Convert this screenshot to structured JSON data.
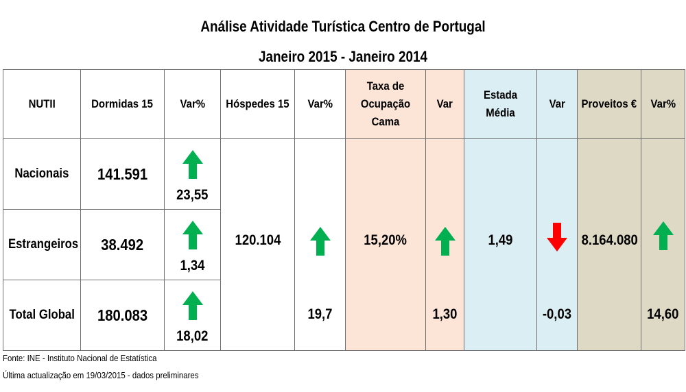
{
  "title": "Análise Atividade Turística Centro de Portugal",
  "subtitle": "Janeiro 2015 - Janeiro 2014",
  "header": {
    "nutii": "NUTII",
    "dormidas": "Dormidas 15",
    "var_pct_1": "Var%",
    "hospedes": "Hóspedes 15",
    "var_pct_2": "Var%",
    "taxa": "Taxa de Ocupação Cama",
    "var_1": "Var",
    "estada": "Estada Média",
    "var_2": "Var",
    "proveitos": "Proveitos €",
    "var_pct_3": "Var%"
  },
  "rows": {
    "nacionais": {
      "label": "Nacionais",
      "dormidas": "141.591",
      "var": "23,55",
      "trend": "up"
    },
    "estrangeiros": {
      "label": "Estrangeiros",
      "dormidas": "38.492",
      "var": "1,34",
      "trend": "up"
    },
    "total": {
      "label": "Total Global",
      "dormidas": "180.083",
      "var": "18,02",
      "trend": "up"
    }
  },
  "merged": {
    "hospedes": "120.104",
    "hospedes_var": "19,7",
    "hospedes_trend": "up",
    "taxa": "15,20%",
    "taxa_var": "1,30",
    "taxa_trend": "up",
    "estada": "1,49",
    "estada_var": "-0,03",
    "estada_trend": "down",
    "proveitos": "8.164.080",
    "proveitos_var": "14,60",
    "proveitos_trend": "up"
  },
  "colors": {
    "up": "#00b050",
    "down": "#ff0000",
    "peach": "#fce4d6",
    "blue": "#daeef3",
    "tan": "#ddd9c4"
  },
  "icons": {
    "up": "arrow-up-icon",
    "down": "arrow-down-icon"
  },
  "footer": {
    "source": "Fonte: INE - Instituto Nacional de Estatística",
    "updated": "Última actualização em 19/03/2015 - dados preliminares"
  }
}
